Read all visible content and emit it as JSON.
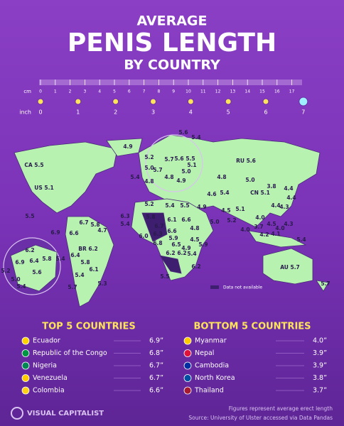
{
  "header": {
    "line1": "AVERAGE",
    "line2": "PENIS LENGTH",
    "line3": "BY COUNTRY"
  },
  "ruler": {
    "cm_label": "cm",
    "cm": [
      0,
      1,
      2,
      3,
      4,
      5,
      6,
      7,
      8,
      9,
      10,
      11,
      12,
      13,
      14,
      15,
      16,
      17
    ],
    "inch_label": "inch",
    "inch": [
      0,
      1,
      2,
      3,
      4,
      5,
      6,
      7
    ]
  },
  "map": {
    "labels": [
      "5.6",
      "5.4",
      "4.9",
      "5.2",
      "RU 5.6",
      "5.0",
      "5.7",
      "5.6",
      "5.5",
      "5.1",
      "5.7",
      "5.0",
      "4.8",
      "4.9",
      "5.4",
      "4.8",
      "4.8",
      "5.0",
      "CN 5.1",
      "3.8",
      "4.4",
      "4.4",
      "4.3",
      "4.4",
      "4.6",
      "5.4",
      "5.2",
      "5.4",
      "5.5",
      "4.9",
      "4.5",
      "5.1",
      "6.3",
      "5.4",
      "5.8",
      "6.1",
      "6.6",
      "5.0",
      "5.2",
      "4.0",
      "4.0",
      "4.5",
      "4.0",
      "4.3",
      "3.7",
      "4.1",
      "4.2",
      "5.4",
      "6.7",
      "6.3",
      "6.6",
      "4.8",
      "6.0",
      "5.9",
      "6.8",
      "6.5",
      "4.5",
      "4.9",
      "5.9",
      "6.2",
      "6.2",
      "5.4",
      "6.2",
      "5.5",
      "AU 5.7",
      "5.7",
      "CA 5.5",
      "US 5.1",
      "5.5",
      "6.7",
      "5.8",
      "4.7",
      "6.6",
      "6.9",
      "BR 6.2",
      "6.4",
      "5.8",
      "6.1",
      "5.4",
      "5.3",
      "5.7",
      "6.2",
      "6.9",
      "6.4",
      "5.8",
      "5.4",
      "5.2",
      "5.0",
      "5.6",
      "5.4"
    ],
    "legend": "Data not available"
  },
  "top5": {
    "title": "TOP 5 COUNTRIES",
    "rows": [
      {
        "country": "Ecuador",
        "value": "6.9”"
      },
      {
        "country": "Republic of the Congo",
        "value": "6.8”"
      },
      {
        "country": "Nigeria",
        "value": "6.7”"
      },
      {
        "country": "Venezuela",
        "value": "6.7”"
      },
      {
        "country": "Colombia",
        "value": "6.6”"
      }
    ]
  },
  "bottom5": {
    "title": "BOTTOM 5 COUNTRIES",
    "rows": [
      {
        "country": "Myanmar",
        "value": "4.0”"
      },
      {
        "country": "Nepal",
        "value": "3.9”"
      },
      {
        "country": "Cambodia",
        "value": "3.9”"
      },
      {
        "country": "North Korea",
        "value": "3.8”"
      },
      {
        "country": "Thailand",
        "value": "3.7”"
      }
    ]
  },
  "footer": {
    "brand": "VISUAL CAPITALIST",
    "note": "Figures represent average erect length",
    "source": "Source: University of Ulster accessed via Data Pandas"
  }
}
